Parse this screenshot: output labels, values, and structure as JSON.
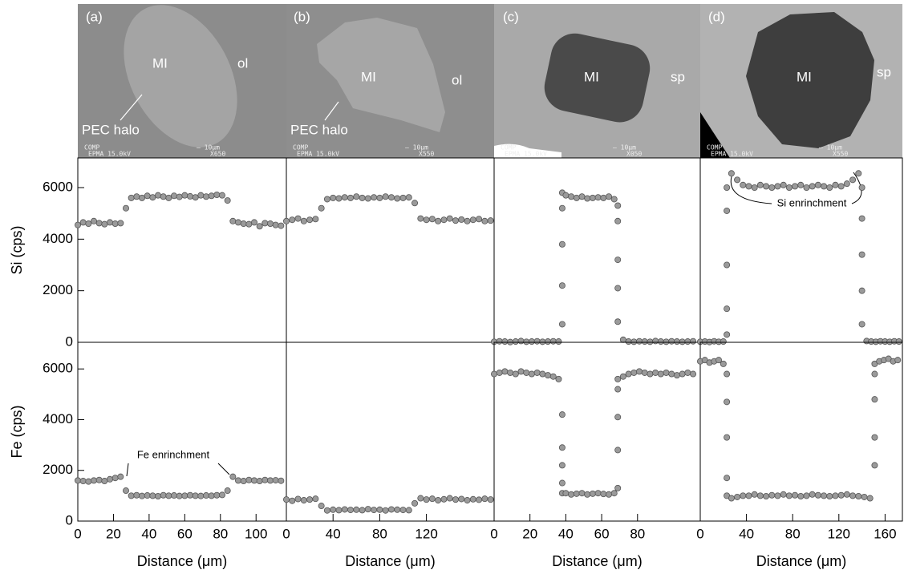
{
  "images": [
    {
      "label": "(a)",
      "texts": [
        "MI",
        "ol",
        "PEC halo"
      ],
      "footer": [
        "COMP",
        "EPMA 15.0kV",
        "— 10μm",
        "X650"
      ]
    },
    {
      "label": "(b)",
      "texts": [
        "MI",
        "ol",
        "PEC halo"
      ],
      "footer": [
        "COMP",
        "EPMA 15.0kV",
        "— 10μm",
        "X550"
      ]
    },
    {
      "label": "(c)",
      "texts": [
        "MI",
        "sp"
      ],
      "footer": [
        "COMP",
        "EPMA 15.0kV",
        "— 10μm",
        "X050"
      ]
    },
    {
      "label": "(d)",
      "texts": [
        "MI",
        "sp"
      ],
      "footer": [
        "COMP",
        "EPMA 15.0kV",
        "— 10μm",
        "X550"
      ]
    }
  ],
  "chart_data": [
    {
      "type": "scatter",
      "ylabel": "Si (cps)",
      "xlim": [
        0,
        117
      ],
      "ylim": [
        0,
        7150
      ],
      "yticks": [
        0,
        2000,
        4000,
        6000
      ],
      "color": "#9a9a9a",
      "x": [
        0,
        3,
        6,
        9,
        12,
        15,
        18,
        21,
        24,
        27,
        30,
        33,
        36,
        39,
        42,
        45,
        48,
        51,
        54,
        57,
        60,
        63,
        66,
        69,
        72,
        75,
        78,
        81,
        84,
        87,
        90,
        93,
        96,
        99,
        102,
        105,
        108,
        111,
        114
      ],
      "values": [
        4550,
        4650,
        4600,
        4700,
        4620,
        4580,
        4650,
        4600,
        4620,
        5200,
        5600,
        5650,
        5600,
        5680,
        5620,
        5700,
        5650,
        5600,
        5680,
        5640,
        5700,
        5660,
        5620,
        5700,
        5650,
        5680,
        5720,
        5700,
        5500,
        4700,
        4650,
        4600,
        4580,
        4650,
        4500,
        4620,
        4600,
        4550,
        4520
      ]
    },
    {
      "type": "scatter",
      "ylabel": "Fe (cps)",
      "xlabel": "Distance (μm)",
      "annotation": "Fe enrinchment",
      "xlim": [
        0,
        117
      ],
      "ylim": [
        0,
        7050
      ],
      "yticks": [
        0,
        2000,
        4000,
        6000
      ],
      "xticks": [
        0,
        20,
        40,
        60,
        80,
        100
      ],
      "color": "#9a9a9a",
      "x": [
        0,
        3,
        6,
        9,
        12,
        15,
        18,
        21,
        24,
        27,
        30,
        33,
        36,
        39,
        42,
        45,
        48,
        51,
        54,
        57,
        60,
        63,
        66,
        69,
        72,
        75,
        78,
        81,
        84,
        87,
        90,
        93,
        96,
        99,
        102,
        105,
        108,
        111,
        114
      ],
      "values": [
        1600,
        1580,
        1560,
        1600,
        1620,
        1580,
        1650,
        1700,
        1750,
        1200,
        1000,
        1020,
        990,
        1010,
        1000,
        980,
        1020,
        1000,
        1010,
        990,
        1000,
        1020,
        1000,
        990,
        1010,
        1000,
        1020,
        1030,
        1200,
        1750,
        1600,
        1580,
        1620,
        1600,
        1580,
        1620,
        1600,
        1610,
        1590
      ]
    },
    {
      "type": "scatter",
      "xlim": [
        0,
        178
      ],
      "ylim": [
        0,
        7150
      ],
      "color": "#9a9a9a",
      "x": [
        0,
        5,
        10,
        15,
        20,
        25,
        30,
        35,
        40,
        45,
        50,
        55,
        60,
        65,
        70,
        75,
        80,
        85,
        90,
        95,
        100,
        105,
        110,
        115,
        120,
        125,
        130,
        135,
        140,
        145,
        150,
        155,
        160,
        165,
        170,
        175
      ],
      "values": [
        4700,
        4750,
        4800,
        4700,
        4750,
        4780,
        5200,
        5550,
        5600,
        5580,
        5620,
        5600,
        5650,
        5600,
        5580,
        5620,
        5600,
        5650,
        5620,
        5580,
        5600,
        5620,
        5400,
        4800,
        4750,
        4780,
        4700,
        4750,
        4800,
        4720,
        4760,
        4700,
        4750,
        4780,
        4700,
        4720
      ]
    },
    {
      "type": "scatter",
      "xlabel": "Distance (μm)",
      "xlim": [
        0,
        178
      ],
      "ylim": [
        0,
        7050
      ],
      "xticks": [
        0,
        40,
        80,
        120
      ],
      "color": "#9a9a9a",
      "x": [
        0,
        5,
        10,
        15,
        20,
        25,
        30,
        35,
        40,
        45,
        50,
        55,
        60,
        65,
        70,
        75,
        80,
        85,
        90,
        95,
        100,
        105,
        110,
        115,
        120,
        125,
        130,
        135,
        140,
        145,
        150,
        155,
        160,
        165,
        170,
        175
      ],
      "values": [
        850,
        800,
        870,
        820,
        850,
        880,
        600,
        420,
        450,
        430,
        460,
        440,
        450,
        430,
        470,
        440,
        450,
        420,
        460,
        450,
        440,
        430,
        700,
        900,
        850,
        880,
        820,
        860,
        900,
        850,
        870,
        820,
        860,
        840,
        880,
        850
      ]
    },
    {
      "type": "scatter",
      "xlim": [
        0,
        115
      ],
      "ylim": [
        0,
        7150
      ],
      "color": "#9a9a9a",
      "x": [
        0,
        3,
        6,
        9,
        12,
        15,
        18,
        21,
        24,
        27,
        30,
        33,
        36,
        38,
        38,
        38,
        38,
        38,
        40,
        43,
        46,
        49,
        52,
        55,
        58,
        61,
        64,
        67,
        69,
        69,
        69,
        69,
        69,
        72,
        75,
        78,
        81,
        84,
        87,
        90,
        93,
        96,
        99,
        102,
        105,
        108,
        111
      ],
      "values": [
        20,
        40,
        30,
        10,
        30,
        50,
        20,
        30,
        40,
        20,
        30,
        40,
        30,
        700,
        2200,
        3800,
        5200,
        5800,
        5700,
        5650,
        5600,
        5650,
        5580,
        5600,
        5620,
        5600,
        5650,
        5550,
        5300,
        4700,
        3200,
        2100,
        800,
        100,
        30,
        20,
        40,
        30,
        20,
        50,
        30,
        20,
        40,
        30,
        20,
        30,
        40
      ]
    },
    {
      "type": "scatter",
      "xlabel": "Distance (μm)",
      "xlim": [
        0,
        115
      ],
      "ylim": [
        0,
        7050
      ],
      "xticks": [
        0,
        20,
        40,
        60,
        80
      ],
      "color": "#9a9a9a",
      "x": [
        0,
        3,
        6,
        9,
        12,
        15,
        18,
        21,
        24,
        27,
        30,
        33,
        36,
        38,
        38,
        38,
        38,
        38,
        40,
        43,
        46,
        49,
        52,
        55,
        58,
        61,
        64,
        67,
        69,
        69,
        69,
        69,
        69,
        72,
        75,
        78,
        81,
        84,
        87,
        90,
        93,
        96,
        99,
        102,
        105,
        108,
        111
      ],
      "values": [
        5800,
        5850,
        5900,
        5850,
        5800,
        5900,
        5850,
        5800,
        5850,
        5800,
        5750,
        5700,
        5600,
        4200,
        2900,
        2200,
        1500,
        1100,
        1100,
        1050,
        1080,
        1100,
        1050,
        1080,
        1100,
        1070,
        1050,
        1100,
        1300,
        2800,
        4100,
        5200,
        5600,
        5700,
        5800,
        5850,
        5900,
        5850,
        5800,
        5850,
        5800,
        5850,
        5800,
        5750,
        5800,
        5850,
        5800
      ]
    },
    {
      "type": "scatter",
      "annotation": "Si enrinchment",
      "xlim": [
        0,
        175
      ],
      "ylim": [
        0,
        7150
      ],
      "color": "#9a9a9a",
      "x": [
        0,
        4,
        8,
        12,
        16,
        20,
        23,
        23,
        23,
        23,
        23,
        27,
        32,
        37,
        42,
        47,
        52,
        57,
        62,
        67,
        72,
        77,
        82,
        87,
        92,
        97,
        102,
        107,
        112,
        117,
        122,
        127,
        132,
        137,
        140,
        140,
        140,
        140,
        140,
        144,
        148,
        152,
        156,
        160,
        164,
        168,
        172
      ],
      "values": [
        20,
        30,
        10,
        40,
        20,
        30,
        300,
        1300,
        3000,
        5100,
        6000,
        6550,
        6300,
        6100,
        6050,
        6000,
        6100,
        6050,
        6000,
        6050,
        6100,
        6000,
        6050,
        6100,
        6000,
        6050,
        6100,
        6050,
        6000,
        6100,
        6050,
        6150,
        6300,
        6550,
        6000,
        4800,
        3400,
        2000,
        700,
        50,
        30,
        20,
        40,
        30,
        20,
        40,
        30
      ]
    },
    {
      "type": "scatter",
      "xlabel": "Distance (μm)",
      "xlim": [
        0,
        175
      ],
      "ylim": [
        0,
        7050
      ],
      "xticks": [
        0,
        40,
        80,
        120,
        160
      ],
      "color": "#9a9a9a",
      "x": [
        0,
        4,
        8,
        12,
        16,
        20,
        23,
        23,
        23,
        23,
        23,
        27,
        32,
        37,
        42,
        47,
        52,
        57,
        62,
        67,
        72,
        77,
        82,
        87,
        92,
        97,
        102,
        107,
        112,
        117,
        122,
        127,
        132,
        137,
        142,
        147,
        151,
        151,
        151,
        151,
        151,
        155,
        159,
        163,
        167,
        171
      ],
      "values": [
        6300,
        6350,
        6250,
        6300,
        6350,
        6200,
        5800,
        4700,
        3300,
        1700,
        1000,
        900,
        950,
        1000,
        1000,
        1050,
        1000,
        980,
        1020,
        1000,
        1050,
        1000,
        1020,
        980,
        1000,
        1050,
        1020,
        1000,
        980,
        1000,
        1020,
        1050,
        1000,
        980,
        950,
        900,
        2200,
        3300,
        4800,
        5800,
        6200,
        6300,
        6350,
        6400,
        6300,
        6350
      ]
    }
  ]
}
